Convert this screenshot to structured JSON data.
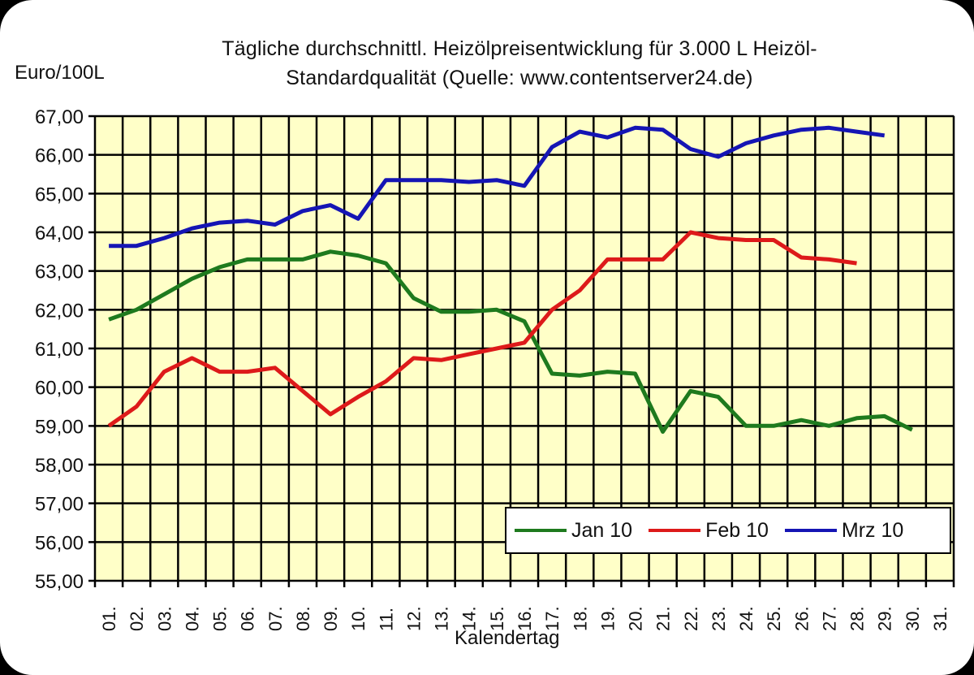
{
  "chart_data": {
    "type": "line",
    "title": "Tägliche durchschnittl. Heizölpreisentwicklung für 3.000 L Heizöl-Standardqualität (Quelle: www.contentserver24.de)",
    "title_lines": [
      "Tägliche durchschnittl. Heizölpreisentwicklung für 3.000 L Heizöl-",
      "Standardqualität (Quelle: www.contentserver24.de)"
    ],
    "xlabel": "Kalendertag",
    "ylabel": "Euro/100L",
    "ylim": [
      55,
      67
    ],
    "yticks": [
      "55,00",
      "56,00",
      "57,00",
      "58,00",
      "59,00",
      "60,00",
      "61,00",
      "62,00",
      "63,00",
      "64,00",
      "65,00",
      "66,00",
      "67,00"
    ],
    "categories": [
      "01.",
      "02.",
      "03.",
      "04.",
      "05.",
      "06.",
      "07.",
      "08.",
      "09.",
      "10.",
      "11.",
      "12.",
      "13.",
      "14.",
      "15.",
      "16.",
      "17.",
      "18.",
      "19.",
      "20.",
      "21.",
      "22.",
      "23.",
      "24.",
      "25.",
      "26.",
      "27.",
      "28.",
      "29.",
      "30.",
      "31."
    ],
    "grid": true,
    "legend_position": "inside-bottom-right",
    "plot_background": "#FFFFC8",
    "series": [
      {
        "name": "Jan 10",
        "color": "#1E7A1E",
        "values": [
          61.75,
          62.0,
          62.4,
          62.8,
          63.1,
          63.3,
          63.3,
          63.3,
          63.5,
          63.4,
          63.2,
          62.3,
          61.95,
          61.95,
          62.0,
          61.7,
          60.35,
          60.3,
          60.4,
          60.35,
          58.85,
          59.9,
          59.75,
          59.0,
          59.0,
          59.15,
          59.0,
          59.2,
          59.25,
          58.9
        ]
      },
      {
        "name": "Feb 10",
        "color": "#DD1A1A",
        "values": [
          59.0,
          59.5,
          60.4,
          60.75,
          60.4,
          60.4,
          60.5,
          59.9,
          59.3,
          59.75,
          60.15,
          60.75,
          60.7,
          60.85,
          61.0,
          61.15,
          62.0,
          62.5,
          63.3,
          63.3,
          63.3,
          64.0,
          63.85,
          63.8,
          63.8,
          63.35,
          63.3,
          63.2
        ]
      },
      {
        "name": "Mrz 10",
        "color": "#1515B4",
        "values": [
          63.65,
          63.65,
          63.85,
          64.1,
          64.25,
          64.3,
          64.2,
          64.55,
          64.7,
          64.35,
          65.35,
          65.35,
          65.35,
          65.3,
          65.35,
          65.2,
          66.2,
          66.6,
          66.45,
          66.7,
          66.65,
          66.15,
          65.95,
          66.3,
          66.5,
          66.65,
          66.7,
          66.6,
          66.5
        ]
      }
    ]
  }
}
